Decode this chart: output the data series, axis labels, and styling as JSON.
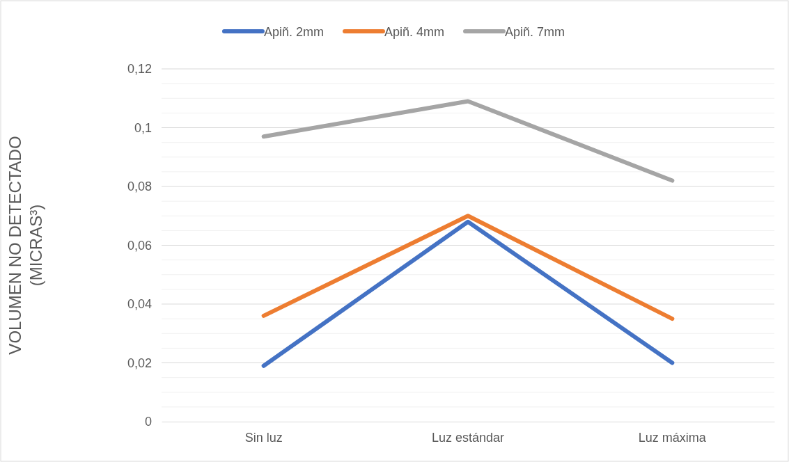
{
  "chart_data": {
    "type": "line",
    "ylabel": "VOLUMEN NO DETECTADO (MICRAS³)",
    "categories": [
      "Sin luz",
      "Luz estándar",
      "Luz máxima"
    ],
    "series": [
      {
        "name": "Apiñ. 2mm",
        "color": "#4472c4",
        "values": [
          0.019,
          0.068,
          0.02
        ]
      },
      {
        "name": "Apiñ. 4mm",
        "color": "#ed7d31",
        "values": [
          0.036,
          0.07,
          0.035
        ]
      },
      {
        "name": "Apiñ. 7mm",
        "color": "#a5a5a5",
        "values": [
          0.097,
          0.109,
          0.082
        ]
      }
    ],
    "ylim": [
      0,
      0.12
    ],
    "yticks": [
      0,
      {
        "value": 0.005,
        "label": null
      },
      {
        "value": 0.01,
        "label": null
      },
      {
        "value": 0.015,
        "label": null
      },
      {
        "value": 0.02,
        "label": "0,02"
      },
      {
        "value": 0.025,
        "label": null
      },
      {
        "value": 0.03,
        "label": null
      },
      {
        "value": 0.035,
        "label": null
      },
      {
        "value": 0.04,
        "label": "0,04"
      },
      {
        "value": 0.045,
        "label": null
      },
      {
        "value": 0.05,
        "label": null
      },
      {
        "value": 0.055,
        "label": null
      },
      {
        "value": 0.06,
        "label": "0,06"
      },
      {
        "value": 0.065,
        "label": null
      },
      {
        "value": 0.07,
        "label": null
      },
      {
        "value": 0.075,
        "label": null
      },
      {
        "value": 0.08,
        "label": "0,08"
      },
      {
        "value": 0.085,
        "label": null
      },
      {
        "value": 0.09,
        "label": null
      },
      {
        "value": 0.095,
        "label": null
      },
      {
        "value": 0.1,
        "label": "0,1"
      },
      {
        "value": 0.105,
        "label": null
      },
      {
        "value": 0.11,
        "label": null
      },
      {
        "value": 0.115,
        "label": null
      },
      {
        "value": 0.12,
        "label": "0,12"
      }
    ],
    "grid": "y",
    "legend": "top",
    "marker": "none",
    "line_style": "solid"
  }
}
